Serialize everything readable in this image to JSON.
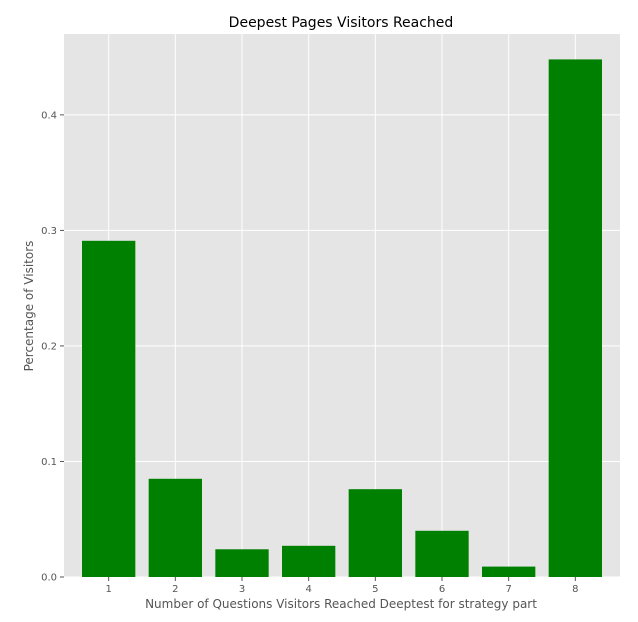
{
  "chart_data": {
    "type": "bar",
    "title": "Deepest Pages Visitors Reached",
    "xlabel": "Number of Questions Visitors Reached Deeptest for strategy part",
    "ylabel": "Percentage of Visitors",
    "categories": [
      "1",
      "2",
      "3",
      "4",
      "5",
      "6",
      "7",
      "8"
    ],
    "values": [
      0.291,
      0.085,
      0.024,
      0.027,
      0.076,
      0.04,
      0.009,
      0.448
    ],
    "ylim": [
      0,
      0.47
    ],
    "yticks": [
      "0.0",
      "0.1",
      "0.2",
      "0.3",
      "0.4"
    ],
    "grid": true,
    "colors": {
      "bar": "#008000",
      "background": "#e5e5e5",
      "grid": "#ffffff"
    }
  }
}
